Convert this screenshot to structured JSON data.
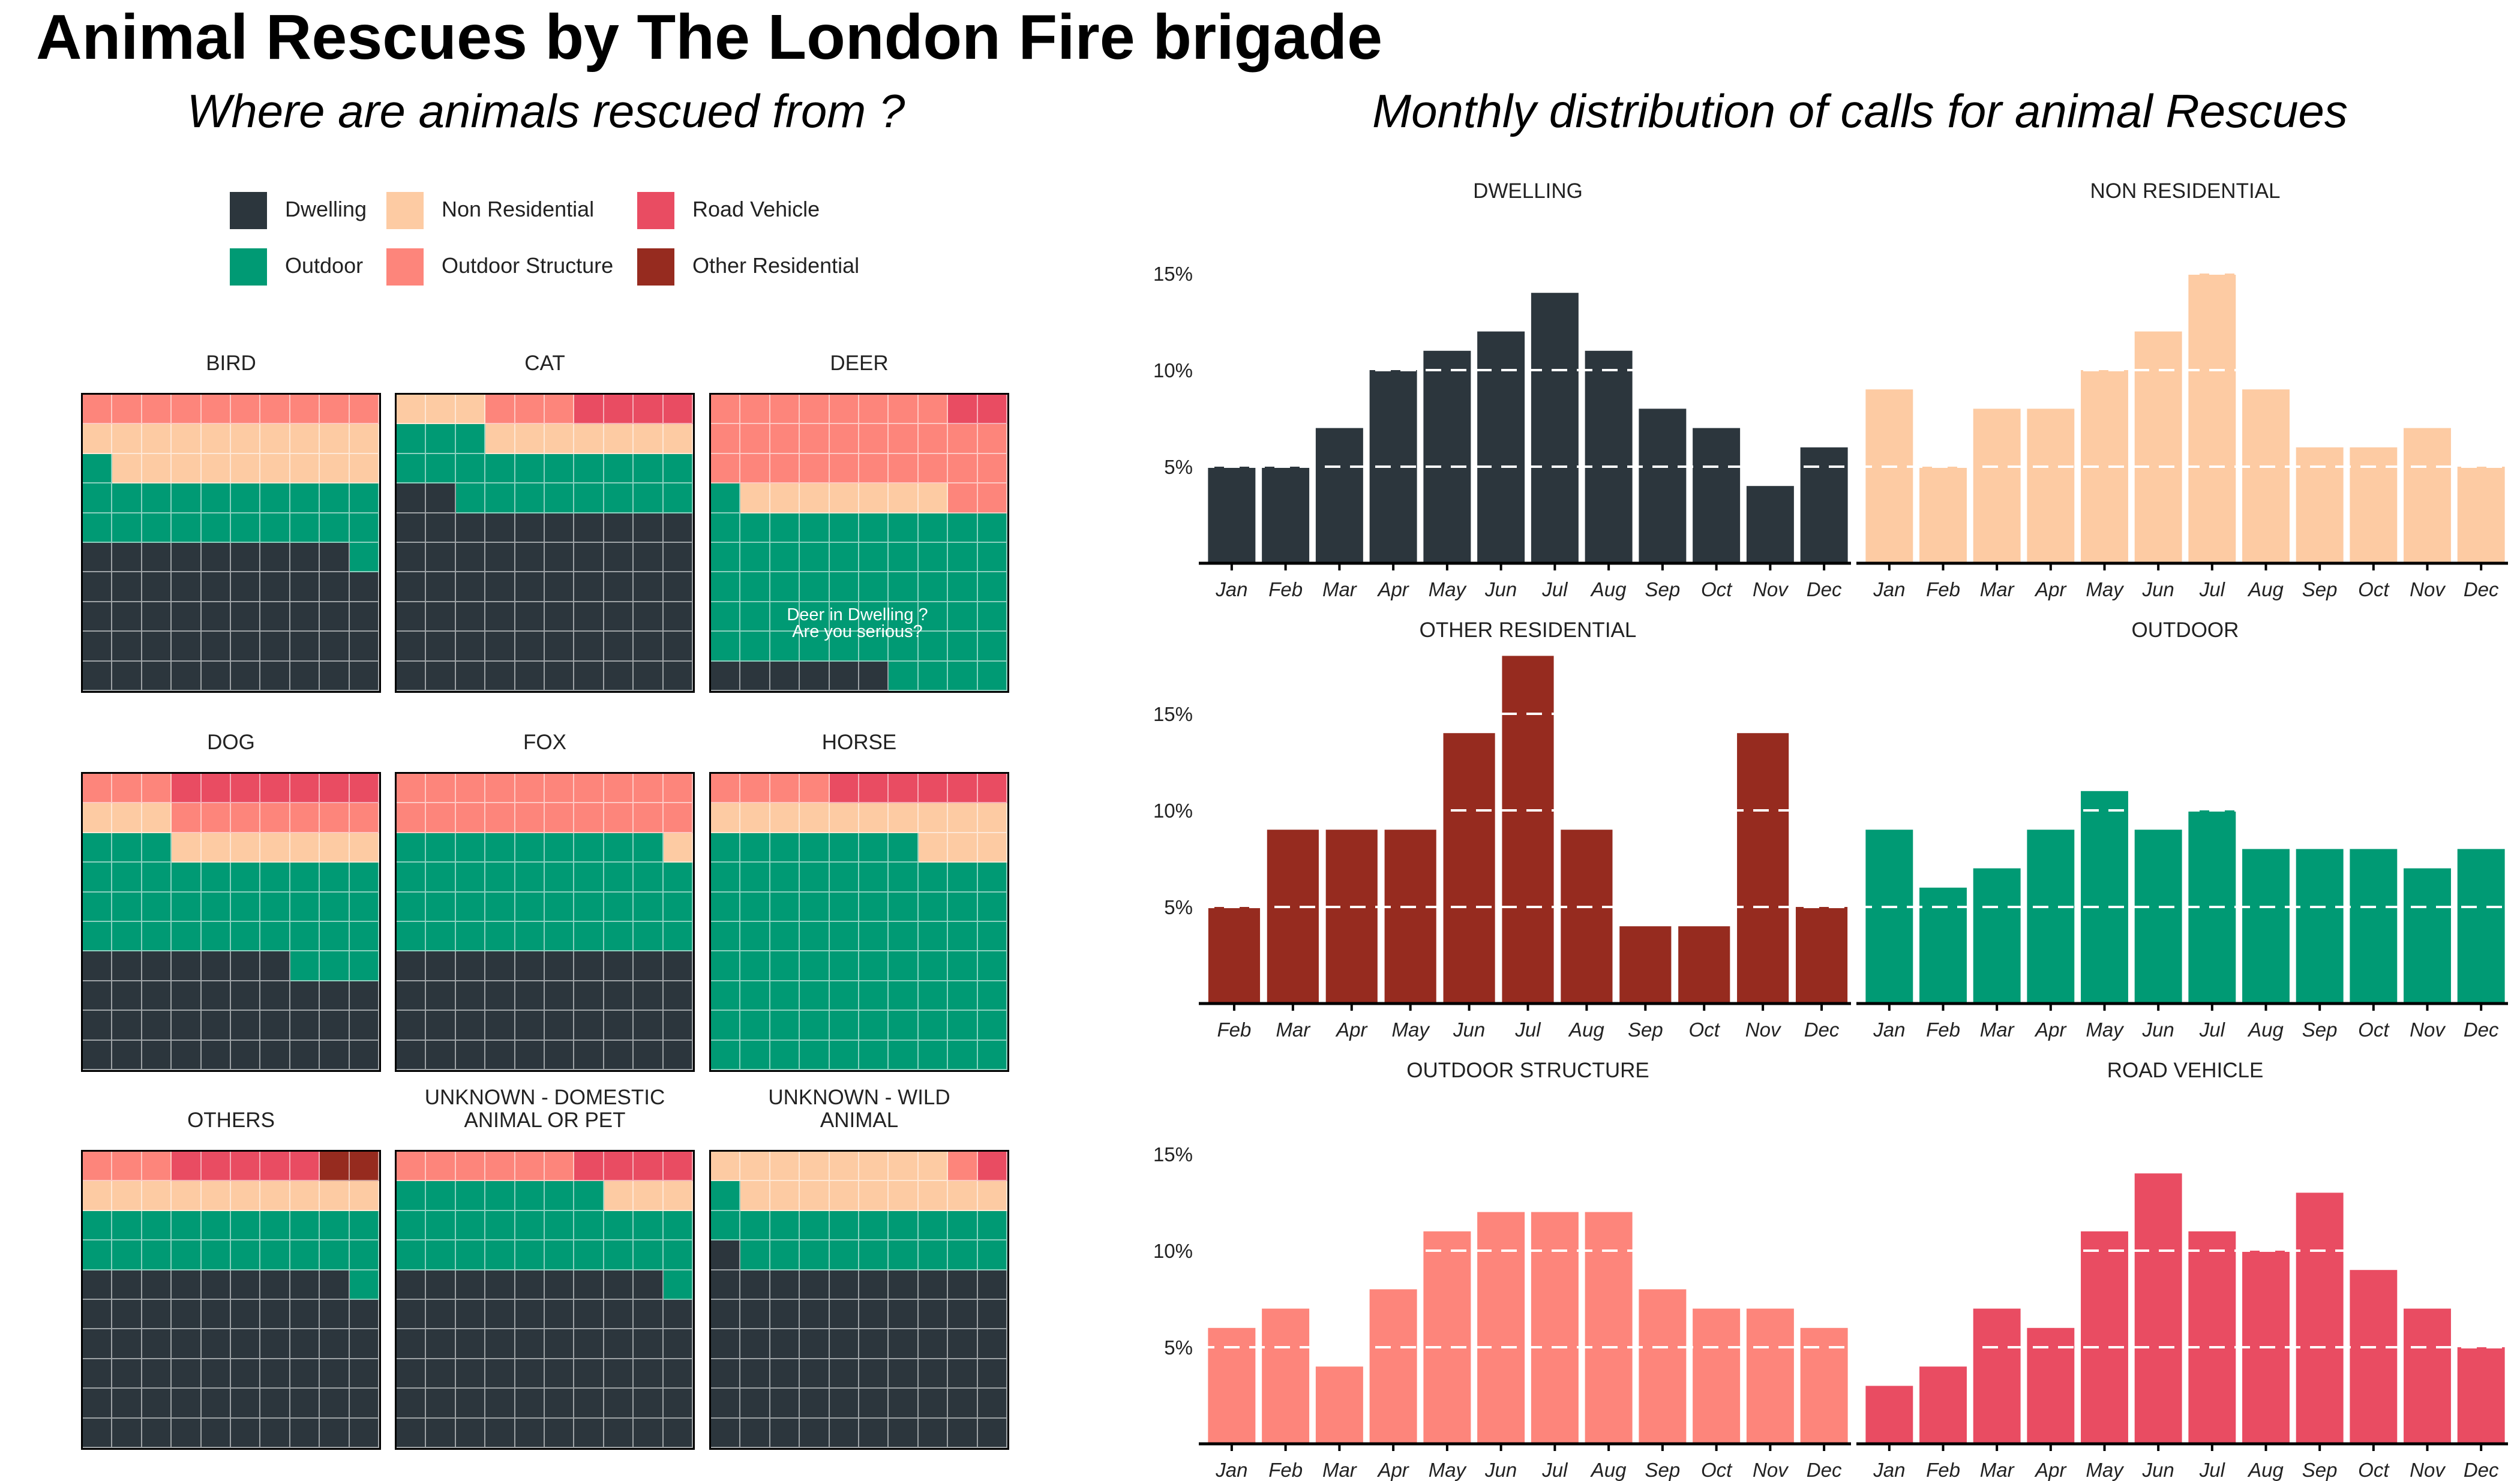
{
  "title": "Animal Rescues by The London Fire brigade",
  "waffle_subtitle": "Where are animals rescued from ?",
  "monthly_subtitle": "Monthly distribution of calls for animal Rescues",
  "colors": {
    "Dwelling": "#2c363d",
    "Outdoor": "#009a74",
    "Non Residential": "#fdcba3",
    "Outdoor Structure": "#fd857b",
    "Road Vehicle": "#e94c62",
    "Other Residential": "#962b1f"
  },
  "legend": [
    {
      "label": "Dwelling",
      "color": "#2c363d"
    },
    {
      "label": "Non Residential",
      "color": "#fdcba3"
    },
    {
      "label": "Road Vehicle",
      "color": "#e94c62"
    },
    {
      "label": "Outdoor",
      "color": "#009a74"
    },
    {
      "label": "Outdoor Structure",
      "color": "#fd857b"
    },
    {
      "label": "Other Residential",
      "color": "#962b1f"
    }
  ],
  "chart_data": [
    {
      "type": "waffle",
      "title": "Where are animals rescued from ?",
      "unit": "squares out of 100 per animal group",
      "categories": [
        "Dwelling",
        "Outdoor",
        "Non Residential",
        "Outdoor Structure",
        "Road Vehicle",
        "Other Residential"
      ],
      "panels": [
        {
          "name": "BIRD",
          "counts": {
            "Dwelling": 49,
            "Outdoor": 22,
            "Non Residential": 19,
            "Outdoor Structure": 10,
            "Road Vehicle": 0,
            "Other Residential": 0
          }
        },
        {
          "name": "CAT",
          "counts": {
            "Dwelling": 62,
            "Outdoor": 21,
            "Non Residential": 10,
            "Outdoor Structure": 3,
            "Road Vehicle": 4,
            "Other Residential": 0
          }
        },
        {
          "name": "DEER",
          "counts": {
            "Dwelling": 6,
            "Outdoor": 55,
            "Non Residential": 7,
            "Outdoor Structure": 30,
            "Road Vehicle": 2,
            "Other Residential": 0
          },
          "annotation": "Deer in Dwelling ?\nAre you serious?"
        },
        {
          "name": "DOG",
          "counts": {
            "Dwelling": 37,
            "Outdoor": 36,
            "Non Residential": 10,
            "Outdoor Structure": 10,
            "Road Vehicle": 7,
            "Other Residential": 0
          }
        },
        {
          "name": "FOX",
          "counts": {
            "Dwelling": 40,
            "Outdoor": 39,
            "Non Residential": 1,
            "Outdoor Structure": 20,
            "Road Vehicle": 0,
            "Other Residential": 0
          }
        },
        {
          "name": "HORSE",
          "counts": {
            "Dwelling": 0,
            "Outdoor": 77,
            "Non Residential": 13,
            "Outdoor Structure": 4,
            "Road Vehicle": 6,
            "Other Residential": 0
          }
        },
        {
          "name": "OTHERS",
          "counts": {
            "Dwelling": 59,
            "Outdoor": 21,
            "Non Residential": 10,
            "Outdoor Structure": 3,
            "Road Vehicle": 5,
            "Other Residential": 2
          }
        },
        {
          "name": "UNKNOWN - DOMESTIC\nANIMAL OR PET",
          "counts": {
            "Dwelling": 59,
            "Outdoor": 28,
            "Non Residential": 3,
            "Outdoor Structure": 6,
            "Road Vehicle": 4,
            "Other Residential": 0
          }
        },
        {
          "name": "UNKNOWN - WILD\nANIMAL",
          "counts": {
            "Dwelling": 61,
            "Outdoor": 20,
            "Non Residential": 17,
            "Outdoor Structure": 1,
            "Road Vehicle": 1,
            "Other Residential": 0
          }
        }
      ]
    },
    {
      "type": "bar",
      "title": "Monthly distribution of calls for animal Rescues",
      "y_unit": "share of calls (%)",
      "ylim": [
        0,
        18
      ],
      "yticks": [
        5,
        10,
        15
      ],
      "ytick_labels": [
        "5%",
        "10%",
        "15%"
      ],
      "reference_lines": [
        5,
        10,
        15
      ],
      "panels": [
        {
          "name": "DWELLING",
          "color": "#2c363d",
          "categories": [
            "Jan",
            "Feb",
            "Mar",
            "Apr",
            "May",
            "Jun",
            "Jul",
            "Aug",
            "Sep",
            "Oct",
            "Nov",
            "Dec"
          ],
          "values": [
            5,
            5,
            7,
            10,
            11,
            12,
            14,
            11,
            8,
            7,
            4,
            6
          ]
        },
        {
          "name": "NON RESIDENTIAL",
          "color": "#fdcba3",
          "categories": [
            "Jan",
            "Feb",
            "Mar",
            "Apr",
            "May",
            "Jun",
            "Jul",
            "Aug",
            "Sep",
            "Oct",
            "Nov",
            "Dec"
          ],
          "values": [
            9,
            5,
            8,
            8,
            10,
            12,
            15,
            9,
            6,
            6,
            7,
            5
          ]
        },
        {
          "name": "OTHER RESIDENTIAL",
          "color": "#962b1f",
          "categories": [
            "Feb",
            "Mar",
            "Apr",
            "May",
            "Jun",
            "Jul",
            "Aug",
            "Sep",
            "Oct",
            "Nov",
            "Dec"
          ],
          "values": [
            5,
            9,
            9,
            9,
            14,
            18,
            9,
            4,
            4,
            14,
            5
          ]
        },
        {
          "name": "OUTDOOR",
          "color": "#009a74",
          "categories": [
            "Jan",
            "Feb",
            "Mar",
            "Apr",
            "May",
            "Jun",
            "Jul",
            "Aug",
            "Sep",
            "Oct",
            "Nov",
            "Dec"
          ],
          "values": [
            9,
            6,
            7,
            9,
            11,
            9,
            10,
            8,
            8,
            8,
            7,
            8
          ]
        },
        {
          "name": "OUTDOOR STRUCTURE",
          "color": "#fd857b",
          "categories": [
            "Jan",
            "Feb",
            "Mar",
            "Apr",
            "May",
            "Jun",
            "Jul",
            "Aug",
            "Sep",
            "Oct",
            "Nov",
            "Dec"
          ],
          "values": [
            6,
            7,
            4,
            8,
            11,
            12,
            12,
            12,
            8,
            7,
            7,
            6
          ]
        },
        {
          "name": "ROAD VEHICLE",
          "color": "#e94c62",
          "categories": [
            "Jan",
            "Feb",
            "Mar",
            "Apr",
            "May",
            "Jun",
            "Jul",
            "Aug",
            "Sep",
            "Oct",
            "Nov",
            "Dec"
          ],
          "values": [
            3,
            4,
            7,
            6,
            11,
            14,
            11,
            10,
            13,
            9,
            7,
            5
          ]
        }
      ]
    }
  ]
}
